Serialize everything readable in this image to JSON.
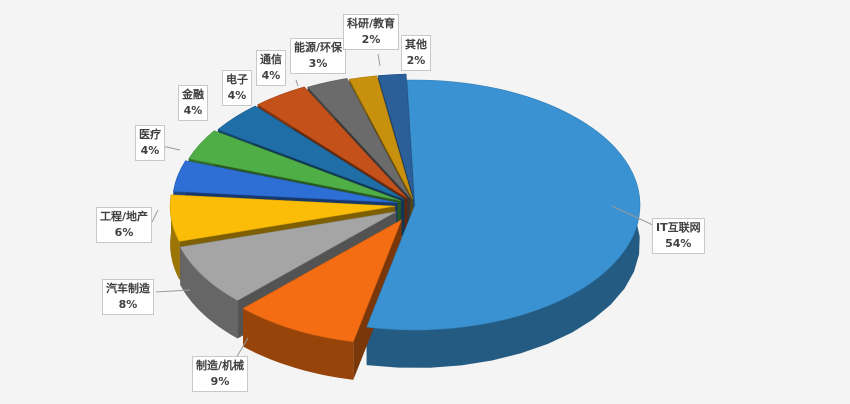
{
  "chart_data": {
    "type": "pie",
    "title": "",
    "slices": [
      {
        "label": "IT互联网",
        "pct": "54%",
        "value": 54,
        "color": "#3a92d2"
      },
      {
        "label": "制造/机械",
        "pct": "9%",
        "value": 9,
        "color": "#f46d12"
      },
      {
        "label": "汽车制造",
        "pct": "8%",
        "value": 8,
        "color": "#a5a5a5"
      },
      {
        "label": "工程/地产",
        "pct": "6%",
        "value": 6,
        "color": "#fbbd07"
      },
      {
        "label": "医疗",
        "pct": "4%",
        "value": 4,
        "color": "#2e6fd6"
      },
      {
        "label": "金融",
        "pct": "4%",
        "value": 4,
        "color": "#4fae45"
      },
      {
        "label": "电子",
        "pct": "4%",
        "value": 4,
        "color": "#1f6ea8"
      },
      {
        "label": "通信",
        "pct": "4%",
        "value": 4,
        "color": "#c4501a"
      },
      {
        "label": "能源/环保",
        "pct": "3%",
        "value": 3,
        "color": "#6b6b6b"
      },
      {
        "label": "科研/教育",
        "pct": "2%",
        "value": 2,
        "color": "#c7900d"
      },
      {
        "label": "其他",
        "pct": "2%",
        "value": 2,
        "color": "#2a5f9a"
      }
    ]
  }
}
